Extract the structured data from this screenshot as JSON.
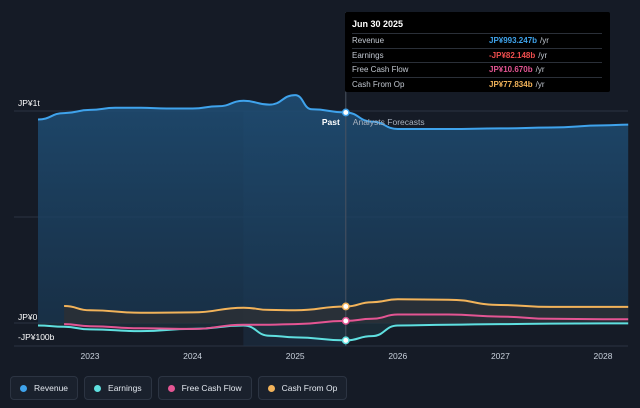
{
  "tooltip": {
    "date": "Jun 30 2025",
    "rows": [
      {
        "label": "Revenue",
        "value": "JP¥993.247b",
        "unit": "/yr",
        "color": "#3fa3ec"
      },
      {
        "label": "Earnings",
        "value": "-JP¥82.148b",
        "unit": "/yr",
        "color": "#ef4e4e"
      },
      {
        "label": "Free Cash Flow",
        "value": "JP¥10.670b",
        "unit": "/yr",
        "color": "#e45593"
      },
      {
        "label": "Cash From Op",
        "value": "JP¥77.834b",
        "unit": "/yr",
        "color": "#f2b35a"
      }
    ]
  },
  "labels": {
    "past": "Past",
    "forecast": "Analysts Forecasts",
    "y_top": "JP¥1t",
    "y_zero": "JP¥0",
    "y_bottom": "-JP¥100b"
  },
  "legend": [
    {
      "label": "Revenue",
      "color": "#3fa3ec"
    },
    {
      "label": "Earnings",
      "color": "#5fe0e0"
    },
    {
      "label": "Free Cash Flow",
      "color": "#e45593"
    },
    {
      "label": "Cash From Op",
      "color": "#f2b35a"
    }
  ],
  "colors": {
    "background": "#151b26",
    "revenue": "#3fa3ec",
    "earnings": "#5fe0e0",
    "free_cash_flow": "#e45593",
    "cash_from_op": "#f2b35a"
  },
  "chart_data": {
    "type": "area",
    "x_ticks": [
      "2023",
      "2024",
      "2025",
      "2026",
      "2027",
      "2028"
    ],
    "ylim": [
      -100,
      1000
    ],
    "y_unit": "JP¥ billions",
    "past_end": "2025-06-30",
    "series": [
      {
        "name": "Revenue",
        "x": [
          "2022-06-30",
          "2022-10-01",
          "2023-01-01",
          "2023-04-01",
          "2023-07-01",
          "2023-10-01",
          "2024-01-01",
          "2024-04-01",
          "2024-07-01",
          "2024-10-01",
          "2025-01-01",
          "2025-03-01",
          "2025-06-30",
          "2025-10-01",
          "2026-01-01",
          "2026-06-30",
          "2027-01-01",
          "2027-06-30",
          "2028-01-01",
          "2028-03-31"
        ],
        "values": [
          960,
          990,
          1005,
          1015,
          1015,
          1012,
          1012,
          1022,
          1048,
          1030,
          1075,
          1008,
          993,
          950,
          915,
          915,
          918,
          922,
          932,
          936
        ]
      },
      {
        "name": "Earnings",
        "x": [
          "2022-06-30",
          "2022-10-01",
          "2023-01-01",
          "2023-07-01",
          "2024-01-01",
          "2024-07-01",
          "2024-10-01",
          "2025-01-01",
          "2025-06-30",
          "2025-10-01",
          "2026-01-01",
          "2026-06-30",
          "2027-01-01",
          "2027-06-30",
          "2028-01-01",
          "2028-03-31"
        ],
        "values": [
          -12,
          -18,
          -30,
          -38,
          -28,
          -12,
          -60,
          -68,
          -82,
          -62,
          -12,
          -8,
          -5,
          -3,
          -2,
          -2
        ]
      },
      {
        "name": "Free Cash Flow",
        "x": [
          "2022-10-01",
          "2023-01-01",
          "2023-07-01",
          "2024-01-01",
          "2024-07-01",
          "2024-10-01",
          "2025-01-01",
          "2025-06-30",
          "2025-10-01",
          "2026-01-01",
          "2026-06-30",
          "2027-01-01",
          "2027-06-30",
          "2028-01-01",
          "2028-03-31"
        ],
        "values": [
          -5,
          -15,
          -25,
          -28,
          -8,
          -8,
          -5,
          10,
          20,
          40,
          40,
          30,
          20,
          18,
          18
        ]
      },
      {
        "name": "Cash From Op",
        "x": [
          "2022-10-01",
          "2023-01-01",
          "2023-07-01",
          "2024-01-01",
          "2024-07-01",
          "2024-10-01",
          "2025-01-01",
          "2025-06-30",
          "2025-10-01",
          "2026-01-01",
          "2026-06-30",
          "2027-01-01",
          "2027-06-30",
          "2028-01-01",
          "2028-03-31"
        ],
        "values": [
          80,
          60,
          48,
          50,
          72,
          62,
          60,
          78,
          98,
          112,
          110,
          85,
          76,
          76,
          76
        ]
      }
    ]
  }
}
